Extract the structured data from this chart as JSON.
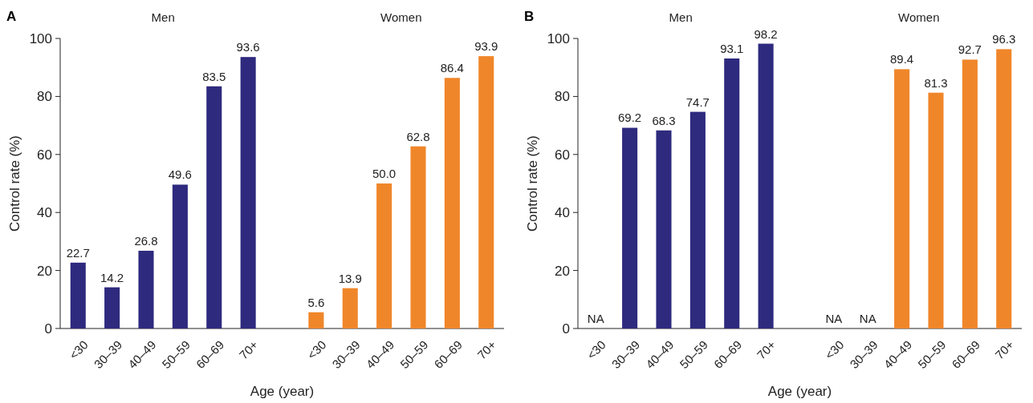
{
  "chart_data": [
    {
      "type": "bar",
      "title": "A",
      "xlabel": "Age (year)",
      "ylabel": "Control rate (%)",
      "annotations": [
        "Men",
        "Women"
      ],
      "categories": [
        "<30",
        "30–39",
        "40–49",
        "50–59",
        "60–69",
        "70+",
        null,
        "<30",
        "30–39",
        "40–49",
        "50–59",
        "60–69",
        "70+"
      ],
      "series": [
        {
          "color": "#2e2a7e",
          "values": [
            22.7,
            14.2,
            26.8,
            49.6,
            83.5,
            93.6,
            null,
            null,
            null,
            null,
            null,
            null,
            null
          ],
          "value_labels": [
            "22.7",
            "14.2",
            "26.8",
            "49.6",
            "83.5",
            "93.6",
            null,
            null,
            null,
            null,
            null,
            null,
            null
          ]
        },
        {
          "color": "#f0862a",
          "values": [
            null,
            null,
            null,
            null,
            null,
            null,
            null,
            5.6,
            13.9,
            50.0,
            62.8,
            86.4,
            93.9
          ],
          "value_labels": [
            null,
            null,
            null,
            null,
            null,
            null,
            null,
            "5.6",
            "13.9",
            "50.0",
            "62.8",
            "86.4",
            "93.9"
          ]
        }
      ],
      "ylim": [
        0,
        100
      ],
      "yticks": [
        0,
        20,
        40,
        60,
        80,
        100
      ]
    },
    {
      "type": "bar",
      "title": "B",
      "xlabel": "Age (year)",
      "ylabel": "Control rate (%)",
      "annotations": [
        "Men",
        "Women"
      ],
      "categories": [
        "<30",
        "30–39",
        "40–49",
        "50–59",
        "60–69",
        "70+",
        null,
        "<30",
        "30–39",
        "40–49",
        "50–59",
        "60–69",
        "70+"
      ],
      "series": [
        {
          "color": "#2e2a7e",
          "values": [
            null,
            69.2,
            68.3,
            74.7,
            93.1,
            98.2,
            null,
            null,
            null,
            null,
            null,
            null,
            null
          ],
          "value_labels": [
            "NA",
            "69.2",
            "68.3",
            "74.7",
            "93.1",
            "98.2",
            null,
            null,
            null,
            null,
            null,
            null,
            null
          ]
        },
        {
          "color": "#f0862a",
          "values": [
            null,
            null,
            null,
            null,
            null,
            null,
            null,
            null,
            null,
            89.4,
            81.3,
            92.7,
            96.3
          ],
          "value_labels": [
            null,
            null,
            null,
            null,
            null,
            null,
            null,
            "NA",
            "NA",
            "89.4",
            "81.3",
            "92.7",
            "96.3"
          ]
        }
      ],
      "ylim": [
        0,
        100
      ],
      "yticks": [
        0,
        20,
        40,
        60,
        80,
        100
      ]
    }
  ]
}
